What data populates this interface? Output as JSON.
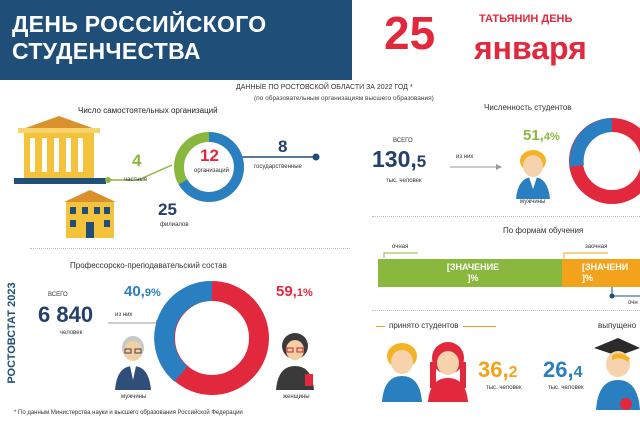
{
  "header": {
    "title_line1": "ДЕНЬ РОССИЙСКОГО",
    "title_line2": "СТУДЕНЧЕСТВА",
    "day": "25",
    "month": "января",
    "holiday": "ТАТЬЯНИН ДЕНЬ"
  },
  "subtitle": {
    "line1": "ДАННЫЕ  ПО РОСТОВСКОЙ ОБЛАСТИ ЗА 2022 ГОД",
    "star": "*",
    "line2": "(по образовательным организациям высшего образования)"
  },
  "orgs": {
    "title": "Число самостоятельных организаций",
    "total": "12",
    "total_label": "организаций",
    "private_value": "4",
    "private_label": "частные",
    "state_value": "8",
    "state_label": "государственные",
    "branches_value": "25",
    "branches_label": "филиалов"
  },
  "staff": {
    "title": "Профессорско-преподавательский состав",
    "total_label": "ВСЕГО",
    "total": "6 840",
    "unit": "человек",
    "of_them": "из них",
    "men_pct_int": "40,",
    "men_pct_dec": "9%",
    "women_pct_int": "59,",
    "women_pct_dec": "1%",
    "men_label": "мужчины",
    "women_label": "женщины"
  },
  "students": {
    "title": "Численность студентов",
    "total_label": "ВСЕГО",
    "total_int": "130,",
    "total_dec": "5",
    "unit": "тыс. человек",
    "of_them": "из них",
    "men_pct_int": "51,",
    "men_pct_dec": "4%",
    "men_label": "мужчины"
  },
  "forms": {
    "title": "По формам обучения",
    "full_time_label": "очная",
    "part_time_label": "заочная",
    "evening_label": "очн",
    "value_placeholder_1": "[ЗНАЧЕНИЕ",
    "value_placeholder_2": "]%",
    "value_placeholder_3": "[ЗНАЧЕНИ",
    "value_placeholder_4": "]%"
  },
  "admitted": {
    "title": "принято  студентов",
    "value_int": "36,",
    "value_dec": "2",
    "unit": "тыс. человек"
  },
  "graduated": {
    "title": "выпущено",
    "value_int": "26,",
    "value_dec": "4",
    "unit": "тыс. человек"
  },
  "vertical": "РОСТОВСТАТ 2023",
  "footnote": "* По данным Министерства науки и высшего образования Российской Федерации",
  "colors": {
    "navy": "#1f4e79",
    "red": "#e2283c",
    "blue": "#2a7fc0",
    "green": "#8ab83e",
    "orange": "#f3a21b"
  }
}
